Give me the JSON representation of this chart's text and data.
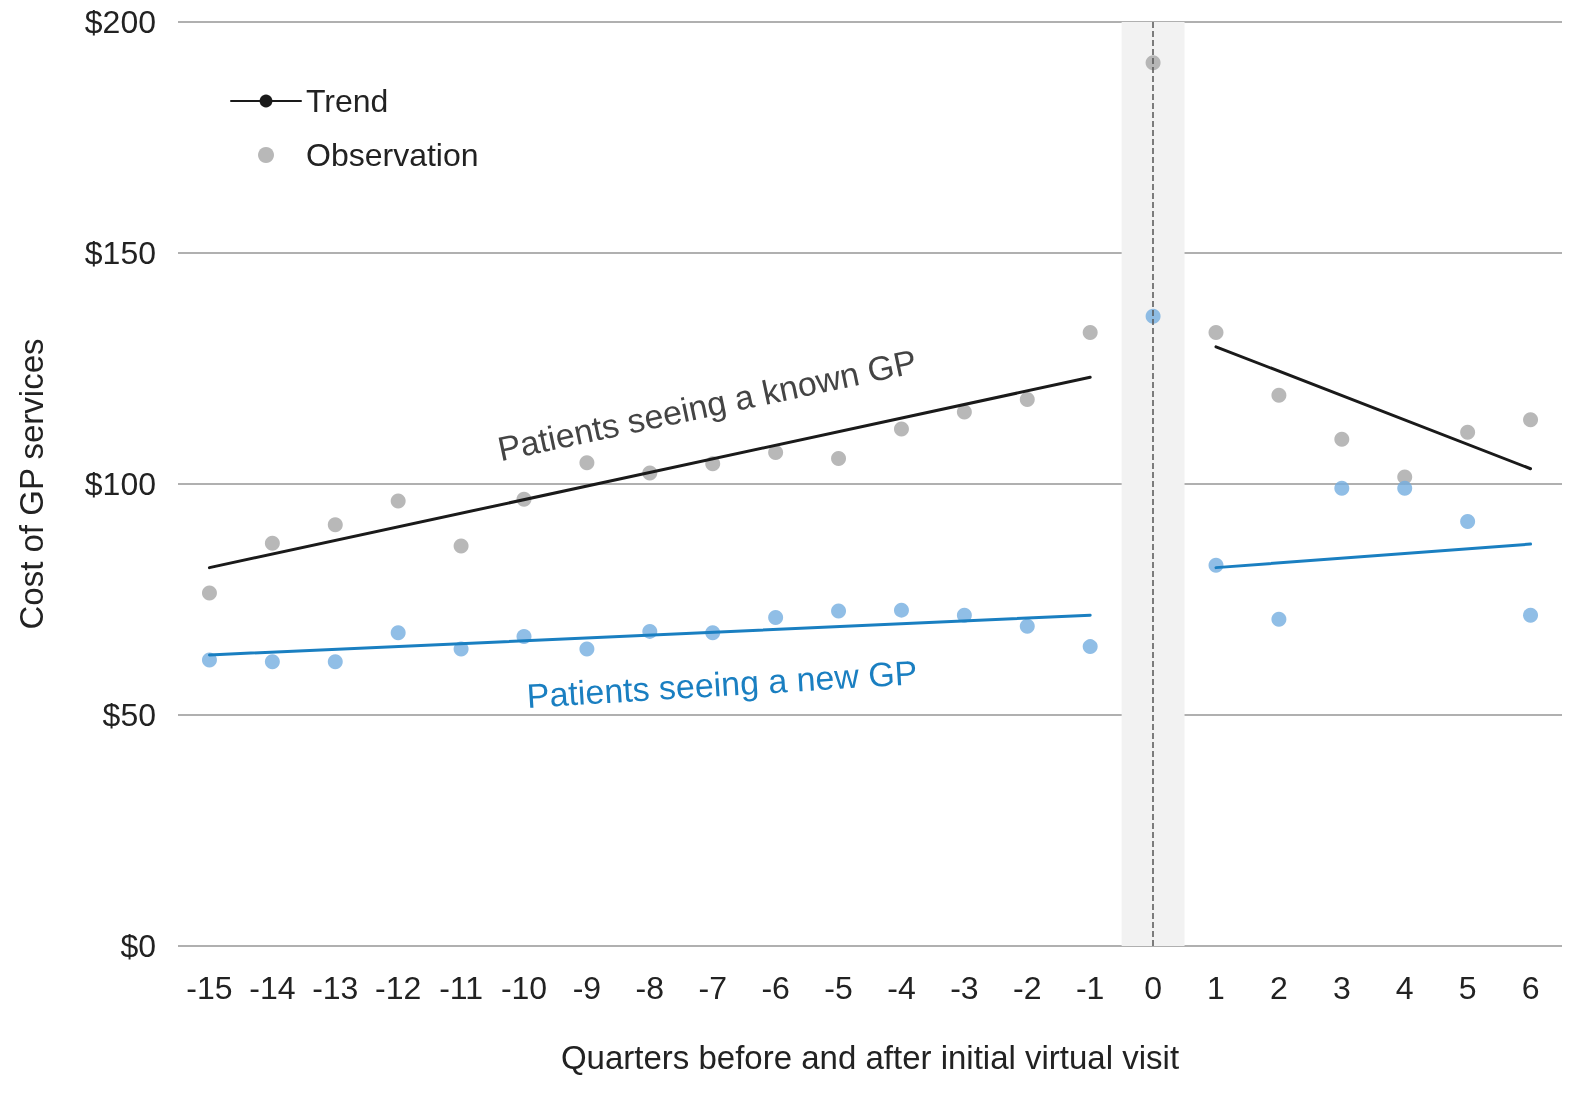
{
  "chart_data": {
    "type": "scatter",
    "xlabel": "Quarters before and after initial virtual visit",
    "ylabel": "Cost of GP services",
    "xlim": [
      -15.5,
      6.5
    ],
    "xticks": [
      -15,
      -14,
      -13,
      -12,
      -11,
      -10,
      -9,
      -8,
      -7,
      -6,
      -5,
      -4,
      -3,
      -2,
      -1,
      0,
      1,
      2,
      3,
      4,
      5,
      6
    ],
    "ylim": [
      0,
      200
    ],
    "yticks": [
      {
        "value": 0,
        "label": "$0"
      },
      {
        "value": 50,
        "label": "$50"
      },
      {
        "value": 100,
        "label": "$100"
      },
      {
        "value": 150,
        "label": "$150"
      },
      {
        "value": 200,
        "label": "$200"
      }
    ],
    "grid": "y",
    "legend": "top left",
    "marker": "circle",
    "x": [
      -15,
      -14,
      -13,
      -12,
      -11,
      -10,
      -9,
      -8,
      -7,
      -6,
      -5,
      -4,
      -3,
      -2,
      -1,
      0,
      1,
      2,
      3,
      4,
      5,
      6
    ],
    "series": [
      {
        "type": "line",
        "name": "Trend",
        "color": "#1a1a1a",
        "marker": "none",
        "x": [
          -15,
          -1
        ],
        "values": [
          81.9,
          123.1
        ]
      },
      {
        "name": "Observation",
        "color": "#a6a6a6",
        "values": [
          76.4,
          87.2,
          91.2,
          96.3,
          86.6,
          96.7,
          104.6,
          102.4,
          104.4,
          106.8,
          105.5,
          111.9,
          115.6,
          118.3,
          132.8,
          191.2,
          132.8,
          119.2,
          109.7,
          101.5,
          111.2,
          113.9
        ]
      },
      {
        "color": "#74aee0",
        "values": [
          61.9,
          61.5,
          61.5,
          67.8,
          64.3,
          67.0,
          64.3,
          68.1,
          67.8,
          71.1,
          72.5,
          72.7,
          71.6,
          69.2,
          64.8,
          136.3,
          82.4,
          70.7,
          99.1,
          99.1,
          91.9,
          71.6
        ]
      },
      {
        "type": "line",
        "color": "#1a1a1a",
        "marker": "none",
        "x": [
          1,
          6
        ],
        "values": [
          129.7,
          103.3
        ]
      },
      {
        "type": "line",
        "color": "#1a7fc1",
        "marker": "none",
        "x": [
          -15,
          -1
        ],
        "values": [
          63.0,
          71.6
        ]
      },
      {
        "type": "line",
        "color": "#1a7fc1",
        "marker": "none",
        "x": [
          1,
          6
        ],
        "values": [
          81.9,
          87.0
        ]
      }
    ],
    "bands": [
      {
        "axis": "x",
        "from": -0.5,
        "to": 0.5,
        "color": "#f2f2f2"
      }
    ],
    "ref_lines": [
      {
        "axis": "x",
        "value": 0,
        "color": "#555555",
        "line_style": "dashed"
      }
    ],
    "annotations": [
      "Patients seeing a known GP",
      "Patients seeing a new GP"
    ]
  }
}
